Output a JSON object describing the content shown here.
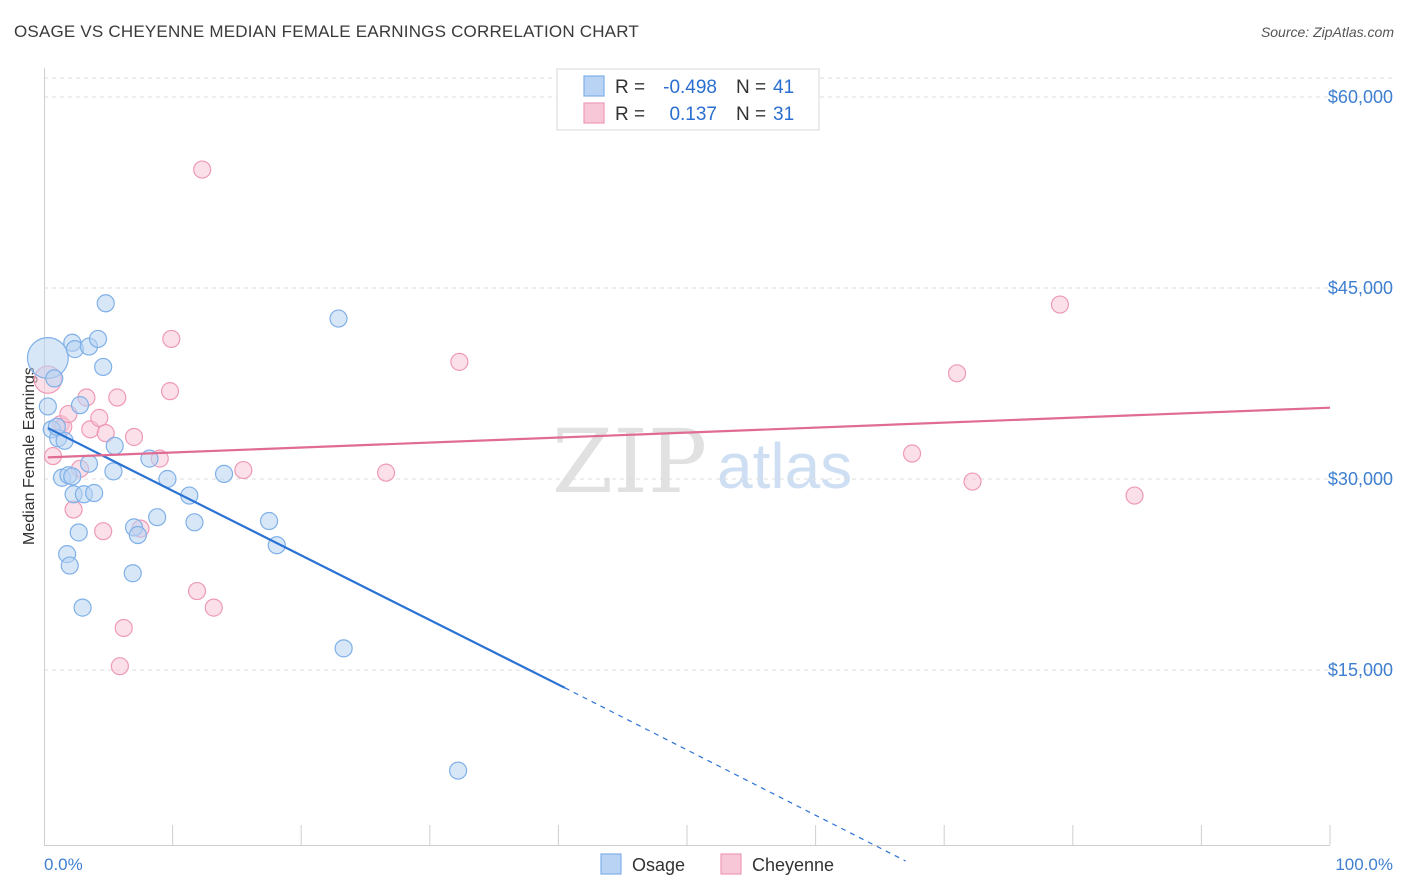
{
  "title": "OSAGE VS CHEYENNE MEDIAN FEMALE EARNINGS CORRELATION CHART",
  "source": "Source: ZipAtlas.com",
  "watermark": {
    "zip": "ZIP",
    "atlas": "atlas"
  },
  "legend": {
    "rows": [
      {
        "r_label": "R =",
        "r_value": "-0.498",
        "n_label": "N =",
        "n_value": "41",
        "color": "#7fb0e8",
        "fill": "#b8d3f3"
      },
      {
        "r_label": "R =",
        "r_value": "0.137",
        "n_label": "N =",
        "n_value": "31",
        "color": "#ee9ab6",
        "fill": "#f7c7d7"
      }
    ]
  },
  "chart_data": {
    "type": "scatter",
    "title": "OSAGE VS CHEYENNE MEDIAN FEMALE EARNINGS CORRELATION CHART",
    "xlabel": "",
    "ylabel": "Median Female Earnings",
    "xlim": [
      0,
      100
    ],
    "ylim": [
      0,
      63000
    ],
    "x_tick_labels": [
      "0.0%",
      "100.0%"
    ],
    "y_ticks": [
      {
        "value": 15000,
        "label": "$15,000"
      },
      {
        "value": 30000,
        "label": "$30,000"
      },
      {
        "value": 45000,
        "label": "$45,000"
      },
      {
        "value": 60000,
        "label": "$60,000"
      }
    ],
    "series": [
      {
        "name": "Osage",
        "color": "#2a72d4",
        "fill": "#b8d3f3",
        "stroke": "#7fb0e8",
        "trend": {
          "x0": 0.3,
          "y0": 34000,
          "x1": 40.5,
          "y1": 13600,
          "dash_to_x": 67,
          "dash_to_y": 0
        },
        "points": [
          [
            0.3,
            39500,
            2.4
          ],
          [
            0.3,
            35700,
            1
          ],
          [
            0.6,
            33900,
            1
          ],
          [
            0.8,
            37900,
            1
          ],
          [
            1.1,
            33200,
            1
          ],
          [
            1.4,
            30100,
            1
          ],
          [
            1.6,
            33000,
            1
          ],
          [
            1.8,
            24100,
            1
          ],
          [
            1.9,
            30300,
            1
          ],
          [
            2.0,
            23200,
            1
          ],
          [
            2.2,
            40700,
            1
          ],
          [
            2.3,
            28800,
            1
          ],
          [
            2.4,
            40200,
            1
          ],
          [
            2.7,
            25800,
            1
          ],
          [
            2.8,
            35800,
            1
          ],
          [
            3.0,
            19900,
            1
          ],
          [
            3.1,
            28800,
            1
          ],
          [
            3.5,
            31200,
            1
          ],
          [
            3.5,
            40400,
            1
          ],
          [
            3.9,
            28900,
            1
          ],
          [
            4.2,
            41000,
            1
          ],
          [
            4.6,
            38800,
            1
          ],
          [
            4.8,
            43800,
            1
          ],
          [
            5.4,
            30600,
            1
          ],
          [
            5.5,
            32600,
            1
          ],
          [
            6.9,
            22600,
            1
          ],
          [
            7.0,
            26200,
            1
          ],
          [
            7.3,
            25600,
            1
          ],
          [
            8.2,
            31600,
            1
          ],
          [
            8.8,
            27000,
            1
          ],
          [
            9.6,
            30000,
            1
          ],
          [
            11.3,
            28700,
            1
          ],
          [
            11.7,
            26600,
            1
          ],
          [
            14.0,
            30400,
            1
          ],
          [
            17.5,
            26700,
            1
          ],
          [
            18.1,
            24800,
            1
          ],
          [
            22.9,
            42600,
            1
          ],
          [
            23.3,
            16700,
            1
          ],
          [
            32.2,
            7100,
            1
          ],
          [
            2.2,
            30200,
            1
          ],
          [
            1.0,
            34100,
            1
          ]
        ]
      },
      {
        "name": "Cheyenne",
        "color": "#e06b93",
        "fill": "#f7c7d7",
        "stroke": "#ee9ab6",
        "trend": {
          "x0": 0.3,
          "y0": 31700,
          "x1": 100,
          "y1": 35600
        },
        "points": [
          [
            0.3,
            37800,
            1.6
          ],
          [
            0.7,
            31800,
            1
          ],
          [
            1.3,
            34300,
            1
          ],
          [
            1.5,
            34100,
            1
          ],
          [
            1.9,
            35100,
            1
          ],
          [
            2.3,
            27600,
            1
          ],
          [
            2.8,
            30800,
            1
          ],
          [
            3.3,
            36400,
            1
          ],
          [
            3.6,
            33900,
            1
          ],
          [
            4.3,
            34800,
            1
          ],
          [
            4.6,
            25900,
            1
          ],
          [
            4.8,
            33600,
            1
          ],
          [
            5.7,
            36400,
            1
          ],
          [
            6.2,
            18300,
            1
          ],
          [
            5.9,
            15300,
            1
          ],
          [
            7.0,
            33300,
            1
          ],
          [
            7.5,
            26100,
            1
          ],
          [
            9.0,
            31600,
            1
          ],
          [
            9.8,
            36900,
            1
          ],
          [
            9.9,
            41000,
            1
          ],
          [
            11.9,
            21200,
            1
          ],
          [
            12.3,
            54300,
            1
          ],
          [
            13.2,
            19900,
            1
          ],
          [
            15.5,
            30700,
            1
          ],
          [
            26.6,
            30500,
            1
          ],
          [
            32.3,
            39200,
            1
          ],
          [
            67.5,
            32000,
            1
          ],
          [
            71.0,
            38300,
            1
          ],
          [
            72.2,
            29800,
            1
          ],
          [
            79.0,
            43700,
            1
          ],
          [
            84.8,
            28700,
            1
          ]
        ]
      }
    ]
  }
}
